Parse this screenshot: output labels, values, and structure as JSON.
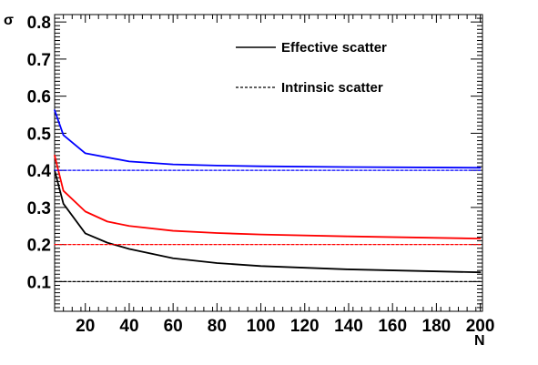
{
  "chart_data": {
    "type": "line",
    "xlabel": "N",
    "ylabel": "σ",
    "xlim": [
      6,
      201
    ],
    "ylim": [
      0.02,
      0.82
    ],
    "x_ticks": [
      20,
      40,
      60,
      80,
      100,
      120,
      140,
      160,
      180,
      200
    ],
    "y_ticks": [
      0.1,
      0.2,
      0.3,
      0.4,
      0.5,
      0.6,
      0.7,
      0.8
    ],
    "x_tick_labels": [
      "20",
      "40",
      "60",
      "80",
      "100",
      "120",
      "140",
      "160",
      "180",
      "200"
    ],
    "y_tick_labels": [
      "0.1",
      "0.2",
      "0.3",
      "0.4",
      "0.5",
      "0.6",
      "0.7",
      "0.8"
    ],
    "grid": false,
    "legend": {
      "position": "top-right",
      "entries": [
        {
          "label": "Effective scatter",
          "style": "solid"
        },
        {
          "label": "Intrinsic scatter",
          "style": "dashed"
        }
      ]
    },
    "series": [
      {
        "style": "solid",
        "color": "#0000ff",
        "x": [
          6,
          10,
          20,
          40,
          60,
          80,
          100,
          140,
          200
        ],
        "y": [
          0.562,
          0.495,
          0.446,
          0.424,
          0.416,
          0.413,
          0.411,
          0.409,
          0.407
        ]
      },
      {
        "style": "solid",
        "color": "#ff0000",
        "x": [
          6,
          10,
          20,
          30,
          40,
          60,
          80,
          100,
          140,
          200
        ],
        "y": [
          0.44,
          0.345,
          0.289,
          0.262,
          0.25,
          0.237,
          0.231,
          0.227,
          0.222,
          0.216
        ]
      },
      {
        "style": "solid",
        "color": "#000000",
        "x": [
          6,
          10,
          20,
          30,
          40,
          60,
          80,
          100,
          140,
          200
        ],
        "y": [
          0.4,
          0.31,
          0.23,
          0.205,
          0.188,
          0.163,
          0.15,
          0.142,
          0.133,
          0.125
        ]
      },
      {
        "style": "dashed",
        "color": "#0000ff",
        "x": [
          6,
          200
        ],
        "y": [
          0.4,
          0.4
        ]
      },
      {
        "style": "dashed",
        "color": "#ff0000",
        "x": [
          6,
          200
        ],
        "y": [
          0.2,
          0.2
        ]
      },
      {
        "style": "dashed",
        "color": "#000000",
        "x": [
          6,
          200
        ],
        "y": [
          0.1,
          0.1
        ]
      }
    ]
  }
}
